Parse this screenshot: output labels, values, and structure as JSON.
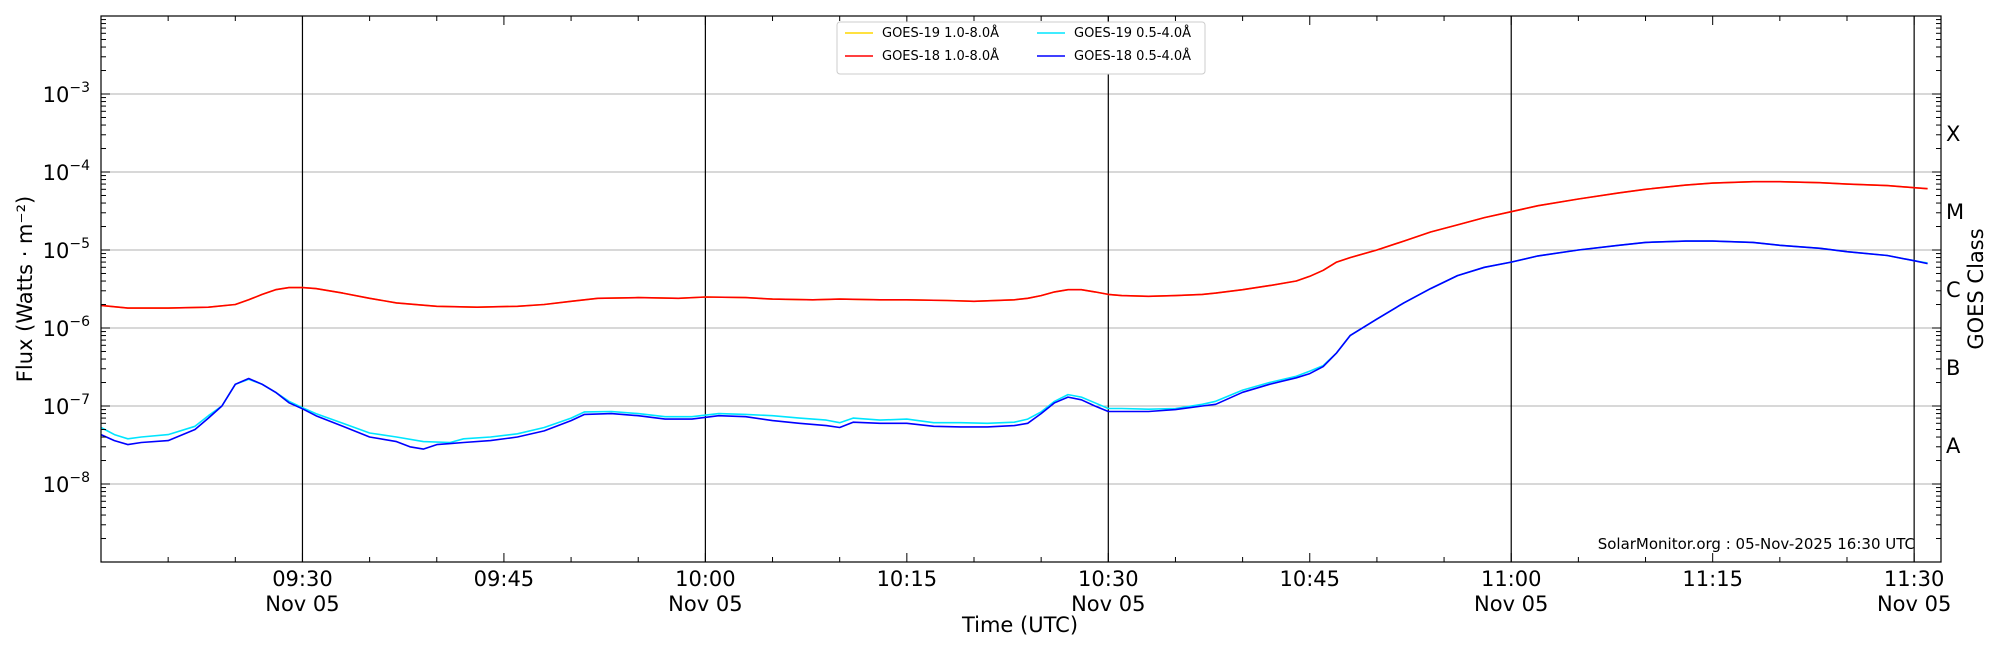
{
  "chart_data": {
    "type": "line",
    "xlabel": "Time (UTC)",
    "ylabel": "Flux (Watts · m⁻²)",
    "ylabel_right": "GOES Class",
    "y_scale": "log",
    "ylim": [
      1e-09,
      0.01
    ],
    "xlim": [
      "2025-11-05 09:15",
      "2025-11-05 11:32"
    ],
    "grid": "horizontal",
    "legend_position": "top-center",
    "credit": "SolarMonitor.org : 05-Nov-2025 16:30 UTC",
    "y_ticks": [
      {
        "value": 1e-08,
        "base": "10",
        "exp": "−8"
      },
      {
        "value": 1e-07,
        "base": "10",
        "exp": "−7"
      },
      {
        "value": 1e-06,
        "base": "10",
        "exp": "−6"
      },
      {
        "value": 1e-05,
        "base": "10",
        "exp": "−5"
      },
      {
        "value": 0.0001,
        "base": "10",
        "exp": "−4"
      },
      {
        "value": 0.001,
        "base": "10",
        "exp": "−3"
      }
    ],
    "x_ticks": [
      {
        "time": "09:30",
        "line1": "09:30",
        "line2": "Nov 05",
        "vline": true
      },
      {
        "time": "09:45",
        "line1": "09:45",
        "line2": "",
        "vline": false
      },
      {
        "time": "10:00",
        "line1": "10:00",
        "line2": "Nov 05",
        "vline": true
      },
      {
        "time": "10:15",
        "line1": "10:15",
        "line2": "",
        "vline": false
      },
      {
        "time": "10:30",
        "line1": "10:30",
        "line2": "Nov 05",
        "vline": true
      },
      {
        "time": "10:45",
        "line1": "10:45",
        "line2": "",
        "vline": false
      },
      {
        "time": "11:00",
        "line1": "11:00",
        "line2": "Nov 05",
        "vline": true
      },
      {
        "time": "11:15",
        "line1": "11:15",
        "line2": "",
        "vline": false
      },
      {
        "time": "11:30",
        "line1": "11:30",
        "line2": "Nov 05",
        "vline": true
      }
    ],
    "goes_classes": [
      {
        "label": "A",
        "value": 3.16e-08
      },
      {
        "label": "B",
        "value": 3.16e-07
      },
      {
        "label": "C",
        "value": 3.16e-06
      },
      {
        "label": "M",
        "value": 3.16e-05
      },
      {
        "label": "X",
        "value": 0.000316
      }
    ],
    "series": [
      {
        "name": "GOES-19 1.0-8.0Å",
        "color": "#ffd700",
        "x": [
          "09:15",
          "09:17",
          "09:20",
          "09:23",
          "09:25",
          "09:26",
          "09:27",
          "09:28",
          "09:29",
          "09:30",
          "09:31",
          "09:33",
          "09:35",
          "09:37",
          "09:40",
          "09:43",
          "09:46",
          "09:48",
          "09:50",
          "09:52",
          "09:55",
          "09:58",
          "10:00",
          "10:03",
          "10:05",
          "10:08",
          "10:10",
          "10:13",
          "10:15",
          "10:18",
          "10:20",
          "10:23",
          "10:24",
          "10:25",
          "10:26",
          "10:27",
          "10:28",
          "10:29",
          "10:30",
          "10:31",
          "10:33",
          "10:35",
          "10:37",
          "10:38",
          "10:40",
          "10:42",
          "10:44",
          "10:45",
          "10:46",
          "10:47",
          "10:48",
          "10:50",
          "10:52",
          "10:54",
          "10:56",
          "10:58",
          "11:00",
          "11:02",
          "11:05",
          "11:08",
          "11:10",
          "11:13",
          "11:15",
          "11:18",
          "11:20",
          "11:23",
          "11:25",
          "11:28",
          "11:30",
          "11:31"
        ],
        "values": [
          1.95e-06,
          1.8e-06,
          1.8e-06,
          1.85e-06,
          2e-06,
          2.3e-06,
          2.7e-06,
          3.1e-06,
          3.3e-06,
          3.3e-06,
          3.2e-06,
          2.8e-06,
          2.4e-06,
          2.1e-06,
          1.9e-06,
          1.85e-06,
          1.9e-06,
          2e-06,
          2.2e-06,
          2.4e-06,
          2.45e-06,
          2.4e-06,
          2.5e-06,
          2.45e-06,
          2.35e-06,
          2.3e-06,
          2.35e-06,
          2.3e-06,
          2.3e-06,
          2.25e-06,
          2.2e-06,
          2.3e-06,
          2.4e-06,
          2.6e-06,
          2.9e-06,
          3.1e-06,
          3.1e-06,
          2.9e-06,
          2.7e-06,
          2.6e-06,
          2.55e-06,
          2.6e-06,
          2.7e-06,
          2.8e-06,
          3.1e-06,
          3.5e-06,
          4e-06,
          4.6e-06,
          5.5e-06,
          7e-06,
          8e-06,
          1e-05,
          1.3e-05,
          1.7e-05,
          2.1e-05,
          2.6e-05,
          3.1e-05,
          3.7e-05,
          4.5e-05,
          5.4e-05,
          6e-05,
          6.8e-05,
          7.2e-05,
          7.5e-05,
          7.5e-05,
          7.3e-05,
          7e-05,
          6.7e-05,
          6.3e-05,
          6.1e-05
        ]
      },
      {
        "name": "GOES-18 1.0-8.0Å",
        "color": "#ff0000",
        "x": [
          "09:15",
          "09:17",
          "09:20",
          "09:23",
          "09:25",
          "09:26",
          "09:27",
          "09:28",
          "09:29",
          "09:30",
          "09:31",
          "09:33",
          "09:35",
          "09:37",
          "09:40",
          "09:43",
          "09:46",
          "09:48",
          "09:50",
          "09:52",
          "09:55",
          "09:58",
          "10:00",
          "10:03",
          "10:05",
          "10:08",
          "10:10",
          "10:13",
          "10:15",
          "10:18",
          "10:20",
          "10:23",
          "10:24",
          "10:25",
          "10:26",
          "10:27",
          "10:28",
          "10:29",
          "10:30",
          "10:31",
          "10:33",
          "10:35",
          "10:37",
          "10:38",
          "10:40",
          "10:42",
          "10:44",
          "10:45",
          "10:46",
          "10:47",
          "10:48",
          "10:50",
          "10:52",
          "10:54",
          "10:56",
          "10:58",
          "11:00",
          "11:02",
          "11:05",
          "11:08",
          "11:10",
          "11:13",
          "11:15",
          "11:18",
          "11:20",
          "11:23",
          "11:25",
          "11:28",
          "11:30",
          "11:31"
        ],
        "values": [
          1.95e-06,
          1.8e-06,
          1.8e-06,
          1.85e-06,
          2e-06,
          2.3e-06,
          2.7e-06,
          3.1e-06,
          3.3e-06,
          3.3e-06,
          3.2e-06,
          2.8e-06,
          2.4e-06,
          2.1e-06,
          1.9e-06,
          1.85e-06,
          1.9e-06,
          2e-06,
          2.2e-06,
          2.4e-06,
          2.45e-06,
          2.4e-06,
          2.5e-06,
          2.45e-06,
          2.35e-06,
          2.3e-06,
          2.35e-06,
          2.3e-06,
          2.3e-06,
          2.25e-06,
          2.2e-06,
          2.3e-06,
          2.4e-06,
          2.6e-06,
          2.9e-06,
          3.1e-06,
          3.1e-06,
          2.9e-06,
          2.7e-06,
          2.6e-06,
          2.55e-06,
          2.6e-06,
          2.7e-06,
          2.8e-06,
          3.1e-06,
          3.5e-06,
          4e-06,
          4.6e-06,
          5.5e-06,
          7e-06,
          8e-06,
          1e-05,
          1.3e-05,
          1.7e-05,
          2.1e-05,
          2.6e-05,
          3.1e-05,
          3.7e-05,
          4.5e-05,
          5.4e-05,
          6e-05,
          6.8e-05,
          7.2e-05,
          7.5e-05,
          7.5e-05,
          7.3e-05,
          7e-05,
          6.7e-05,
          6.3e-05,
          6.1e-05
        ]
      },
      {
        "name": "GOES-19 0.5-4.0Å",
        "color": "#00e5ff",
        "x": [
          "09:15",
          "09:16",
          "09:17",
          "09:18",
          "09:20",
          "09:22",
          "09:23",
          "09:24",
          "09:25",
          "09:26",
          "09:27",
          "09:28",
          "09:29",
          "09:30",
          "09:31",
          "09:33",
          "09:35",
          "09:37",
          "09:39",
          "09:41",
          "09:42",
          "09:44",
          "09:46",
          "09:48",
          "09:50",
          "09:51",
          "09:53",
          "09:55",
          "09:57",
          "09:59",
          "10:01",
          "10:03",
          "10:05",
          "10:07",
          "10:09",
          "10:10",
          "10:11",
          "10:13",
          "10:15",
          "10:17",
          "10:19",
          "10:21",
          "10:23",
          "10:24",
          "10:25",
          "10:26",
          "10:27",
          "10:28",
          "10:29",
          "10:30",
          "10:31",
          "10:33",
          "10:35",
          "10:37",
          "10:38",
          "10:40",
          "10:42",
          "10:44",
          "10:45",
          "10:46",
          "10:47",
          "10:48",
          "10:50",
          "10:52",
          "10:54",
          "10:56",
          "10:58",
          "11:00",
          "11:02",
          "11:05",
          "11:08",
          "11:10",
          "11:13",
          "11:15",
          "11:18",
          "11:20",
          "11:23",
          "11:25",
          "11:28",
          "11:30",
          "11:31"
        ],
        "values": [
          5.3e-08,
          4.3e-08,
          3.8e-08,
          4e-08,
          4.3e-08,
          5.5e-08,
          7.5e-08,
          1e-07,
          1.9e-07,
          2.2e-07,
          1.9e-07,
          1.5e-07,
          1.15e-07,
          9.5e-08,
          8e-08,
          6e-08,
          4.5e-08,
          4e-08,
          3.5e-08,
          3.4e-08,
          3.8e-08,
          4e-08,
          4.4e-08,
          5.3e-08,
          7e-08,
          8.4e-08,
          8.5e-08,
          8e-08,
          7.3e-08,
          7.3e-08,
          8e-08,
          7.8e-08,
          7.5e-08,
          7e-08,
          6.6e-08,
          6.1e-08,
          7e-08,
          6.6e-08,
          6.8e-08,
          6.1e-08,
          6.1e-08,
          6e-08,
          6.2e-08,
          6.8e-08,
          8.4e-08,
          1.15e-07,
          1.4e-07,
          1.3e-07,
          1.1e-07,
          9.3e-08,
          9.3e-08,
          9.1e-08,
          9.3e-08,
          1.05e-07,
          1.15e-07,
          1.6e-07,
          2e-07,
          2.4e-07,
          2.8e-07,
          3.3e-07,
          4.8e-07,
          8e-07,
          1.3e-06,
          2.1e-06,
          3.2e-06,
          4.7e-06,
          6e-06,
          7e-06,
          8.4e-06,
          1e-05,
          1.15e-05,
          1.25e-05,
          1.3e-05,
          1.3e-05,
          1.25e-05,
          1.15e-05,
          1.05e-05,
          9.5e-06,
          8.5e-06,
          7.3e-06,
          6.8e-06
        ]
      },
      {
        "name": "GOES-18 0.5-4.0Å",
        "color": "#0000ff",
        "x": [
          "09:15",
          "09:16",
          "09:17",
          "09:18",
          "09:20",
          "09:22",
          "09:23",
          "09:24",
          "09:25",
          "09:26",
          "09:27",
          "09:28",
          "09:29",
          "09:30",
          "09:31",
          "09:33",
          "09:35",
          "09:37",
          "09:38",
          "09:39",
          "09:40",
          "09:41",
          "09:42",
          "09:44",
          "09:46",
          "09:48",
          "09:50",
          "09:51",
          "09:53",
          "09:55",
          "09:57",
          "09:59",
          "10:01",
          "10:03",
          "10:05",
          "10:07",
          "10:09",
          "10:10",
          "10:11",
          "10:13",
          "10:15",
          "10:17",
          "10:19",
          "10:21",
          "10:23",
          "10:24",
          "10:25",
          "10:26",
          "10:27",
          "10:28",
          "10:29",
          "10:30",
          "10:31",
          "10:33",
          "10:35",
          "10:37",
          "10:38",
          "10:40",
          "10:42",
          "10:44",
          "10:45",
          "10:46",
          "10:47",
          "10:48",
          "10:50",
          "10:52",
          "10:54",
          "10:56",
          "10:58",
          "11:00",
          "11:02",
          "11:05",
          "11:08",
          "11:10",
          "11:13",
          "11:15",
          "11:18",
          "11:20",
          "11:23",
          "11:25",
          "11:28",
          "11:30",
          "11:31"
        ],
        "values": [
          4.3e-08,
          3.6e-08,
          3.2e-08,
          3.4e-08,
          3.6e-08,
          5e-08,
          7e-08,
          1e-07,
          1.9e-07,
          2.25e-07,
          1.9e-07,
          1.5e-07,
          1.1e-07,
          9.2e-08,
          7.5e-08,
          5.5e-08,
          4e-08,
          3.5e-08,
          3e-08,
          2.8e-08,
          3.2e-08,
          3.3e-08,
          3.4e-08,
          3.6e-08,
          4e-08,
          4.8e-08,
          6.5e-08,
          7.8e-08,
          8e-08,
          7.5e-08,
          6.8e-08,
          6.8e-08,
          7.5e-08,
          7.3e-08,
          6.5e-08,
          6e-08,
          5.6e-08,
          5.3e-08,
          6.2e-08,
          6e-08,
          6e-08,
          5.5e-08,
          5.4e-08,
          5.4e-08,
          5.6e-08,
          6e-08,
          8e-08,
          1.1e-07,
          1.3e-07,
          1.2e-07,
          1e-07,
          8.5e-08,
          8.5e-08,
          8.5e-08,
          9e-08,
          1e-07,
          1.05e-07,
          1.5e-07,
          1.9e-07,
          2.3e-07,
          2.6e-07,
          3.2e-07,
          4.8e-07,
          8e-07,
          1.3e-06,
          2.1e-06,
          3.2e-06,
          4.7e-06,
          6e-06,
          7e-06,
          8.4e-06,
          1e-05,
          1.15e-05,
          1.25e-05,
          1.3e-05,
          1.3e-05,
          1.25e-05,
          1.15e-05,
          1.05e-05,
          9.5e-06,
          8.5e-06,
          7.3e-06,
          6.7e-06
        ]
      }
    ]
  }
}
